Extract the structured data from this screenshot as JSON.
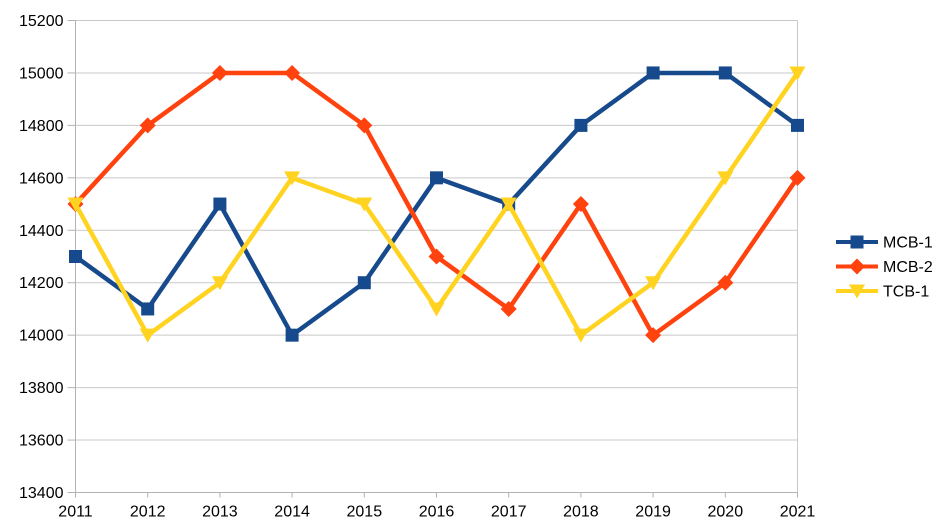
{
  "chart_data": {
    "type": "line",
    "title": "",
    "xlabel": "",
    "ylabel": "",
    "x": [
      2011,
      2012,
      2013,
      2014,
      2015,
      2016,
      2017,
      2018,
      2019,
      2020,
      2021
    ],
    "series": [
      {
        "name": "MCB-1",
        "color": "#164a8c",
        "marker": "square",
        "values": [
          14300,
          14100,
          14500,
          14000,
          14200,
          14600,
          14500,
          14800,
          15000,
          15000,
          14800
        ]
      },
      {
        "name": "MCB-2",
        "color": "#ff420e",
        "marker": "diamond",
        "values": [
          14500,
          14800,
          15000,
          15000,
          14800,
          14300,
          14100,
          14500,
          14000,
          14200,
          14600
        ]
      },
      {
        "name": "TCB-1",
        "color": "#ffd320",
        "marker": "triangle-down",
        "values": [
          14500,
          14000,
          14200,
          14600,
          14500,
          14100,
          14500,
          14000,
          14200,
          14600,
          15000
        ]
      }
    ],
    "ylim": [
      13400,
      15200
    ],
    "ytick_step": 200,
    "yticklabels": [
      "13400",
      "13600",
      "13800",
      "14000",
      "14200",
      "14400",
      "14600",
      "14800",
      "15000",
      "15200"
    ],
    "xticklabels": [
      "2011",
      "2012",
      "2013",
      "2014",
      "2015",
      "2016",
      "2017",
      "2018",
      "2019",
      "2020",
      "2021"
    ],
    "grid": "horizontal",
    "legend_position": "right",
    "legend_entries": [
      "MCB-1",
      "MCB-2",
      "TCB-1"
    ],
    "colors": {
      "gridline": "#c9c9c9",
      "axis": "#b3b3b3",
      "text": "#000000",
      "background": "#ffffff"
    }
  }
}
